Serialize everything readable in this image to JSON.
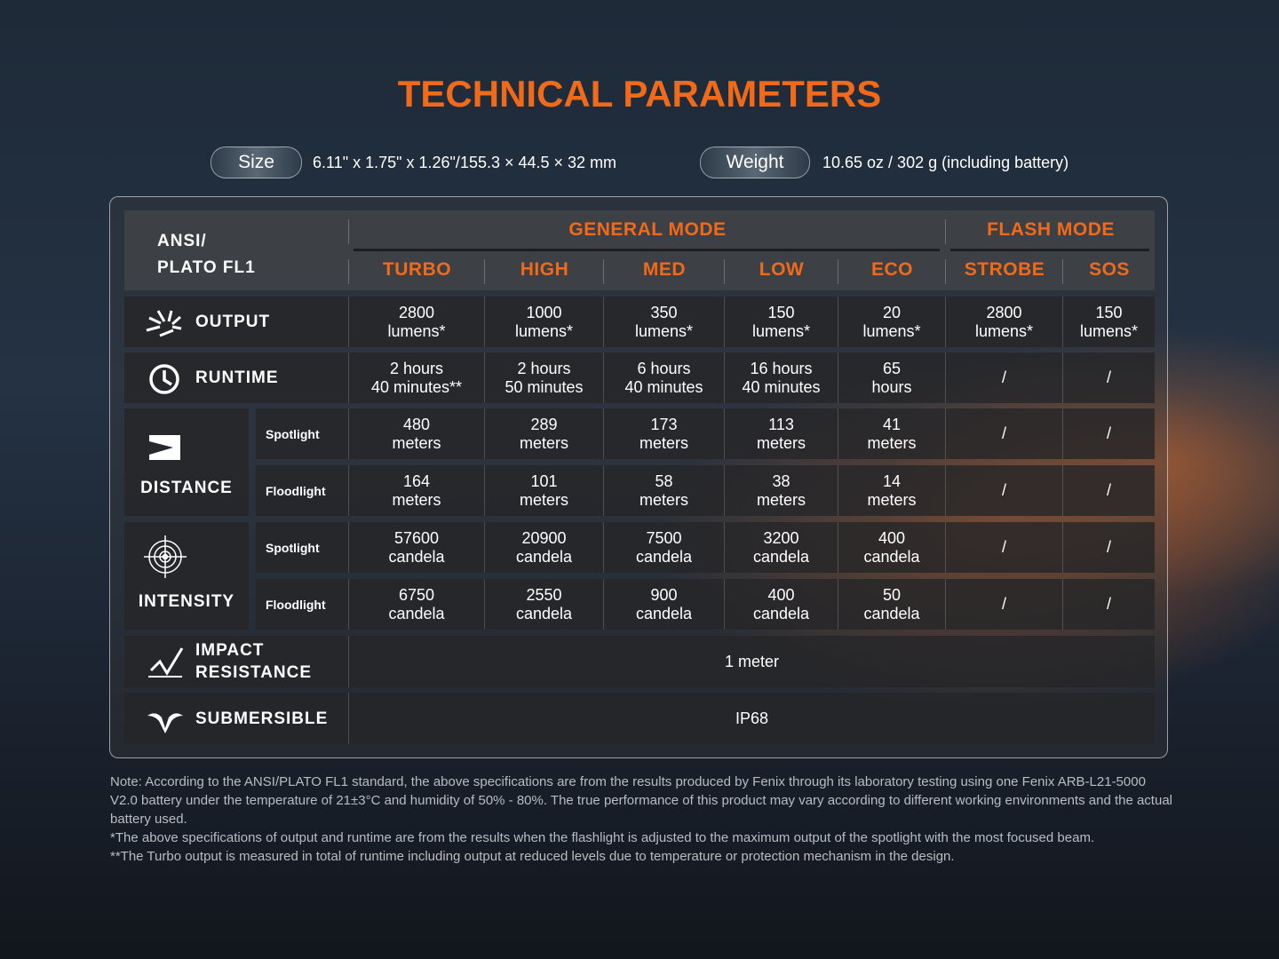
{
  "title": "TECHNICAL PARAMETERS",
  "specs": [
    {
      "label": "Size",
      "value": "6.11\" x 1.75\" x 1.26\"/155.3 × 44.5 × 32 mm"
    },
    {
      "label": "Weight",
      "value": "10.65 oz / 302 g (including battery)"
    }
  ],
  "table": {
    "corner": [
      "ANSI/",
      "PLATO FL1"
    ],
    "groups": [
      {
        "label": "GENERAL MODE",
        "span": 5
      },
      {
        "label": "FLASH MODE",
        "span": 2
      }
    ],
    "modes": [
      "TURBO",
      "HIGH",
      "MED",
      "LOW",
      "ECO",
      "STROBE",
      "SOS"
    ],
    "rows": [
      {
        "label": [
          "OUTPUT"
        ],
        "cells": [
          [
            "2800",
            "lumens*"
          ],
          [
            "1000",
            "lumens*"
          ],
          [
            "350",
            "lumens*"
          ],
          [
            "150",
            "lumens*"
          ],
          [
            "20",
            "lumens*"
          ],
          [
            "2800",
            "lumens*"
          ],
          [
            "150",
            "lumens*"
          ]
        ]
      },
      {
        "label": [
          "RUNTIME"
        ],
        "cells": [
          [
            "2 hours",
            "40 minutes**"
          ],
          [
            "2 hours",
            "50 minutes"
          ],
          [
            "6 hours",
            "40 minutes"
          ],
          [
            "16 hours",
            "40 minutes"
          ],
          [
            "65",
            "hours"
          ],
          [
            "/"
          ],
          [
            "/"
          ]
        ]
      },
      {
        "label": [
          "DISTANCE"
        ],
        "subrows": [
          {
            "label": "Spotlight",
            "cells": [
              [
                "480",
                "meters"
              ],
              [
                "289",
                "meters"
              ],
              [
                "173",
                "meters"
              ],
              [
                "113",
                "meters"
              ],
              [
                "41",
                "meters"
              ],
              [
                "/"
              ],
              [
                "/"
              ]
            ]
          },
          {
            "label": "Floodlight",
            "cells": [
              [
                "164",
                "meters"
              ],
              [
                "101",
                "meters"
              ],
              [
                "58",
                "meters"
              ],
              [
                "38",
                "meters"
              ],
              [
                "14",
                "meters"
              ],
              [
                "/"
              ],
              [
                "/"
              ]
            ]
          }
        ]
      },
      {
        "label": [
          "INTENSITY"
        ],
        "subrows": [
          {
            "label": "Spotlight",
            "cells": [
              [
                "57600",
                "candela"
              ],
              [
                "20900",
                "candela"
              ],
              [
                "7500",
                "candela"
              ],
              [
                "3200",
                "candela"
              ],
              [
                "400",
                "candela"
              ],
              [
                "/"
              ],
              [
                "/"
              ]
            ]
          },
          {
            "label": "Floodlight",
            "cells": [
              [
                "6750",
                "candela"
              ],
              [
                "2550",
                "candela"
              ],
              [
                "900",
                "candela"
              ],
              [
                "400",
                "candela"
              ],
              [
                "50",
                "candela"
              ],
              [
                "/"
              ],
              [
                "/"
              ]
            ]
          }
        ]
      },
      {
        "label": [
          "IMPACT",
          "RESISTANCE"
        ],
        "value": "1 meter"
      },
      {
        "label": [
          "SUBMERSIBLE"
        ],
        "value": "IP68"
      }
    ]
  },
  "notes": [
    "Note:  According to the ANSI/PLATO FL1 standard, the above specifications are from the results produced by Fenix through its laboratory testing using one Fenix ARB-L21-5000 V2.0 battery under the temperature of 21±3°C and humidity of 50% - 80%. The true performance of this product may vary according to different working environments and the actual battery used.",
    "*The above specifications of output and runtime are from the results when the flashlight is adjusted to the maximum output of the spotlight with the most focused beam.",
    "**The Turbo output is measured in total of runtime including output at reduced levels due to temperature or protection mechanism in the design."
  ]
}
